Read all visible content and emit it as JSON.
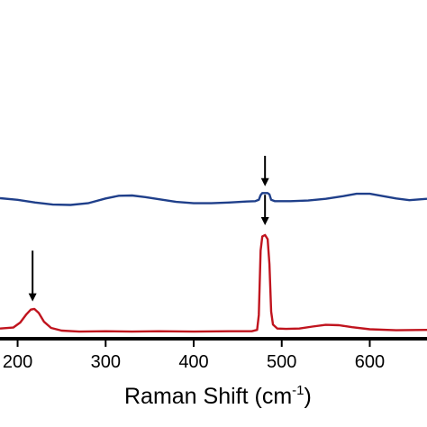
{
  "chart_data": {
    "type": "line",
    "xlabel_main": "Raman Shift (cm",
    "xlabel_sup": "-1",
    "xlabel_close": ")",
    "ylabel": "",
    "xlim": [
      180,
      665
    ],
    "ylim": [
      0,
      100
    ],
    "x_ticks": [
      200,
      300,
      400,
      500,
      600
    ],
    "x_tick_labels": [
      "200",
      "300",
      "400",
      "500",
      "600"
    ],
    "grid": false,
    "series": [
      {
        "color": "#1f3f8a",
        "points": [
          [
            180,
            41.5
          ],
          [
            200,
            41.0
          ],
          [
            220,
            40.2
          ],
          [
            240,
            39.6
          ],
          [
            260,
            39.5
          ],
          [
            280,
            40.0
          ],
          [
            300,
            41.4
          ],
          [
            315,
            42.2
          ],
          [
            330,
            42.3
          ],
          [
            345,
            41.8
          ],
          [
            360,
            41.2
          ],
          [
            380,
            40.4
          ],
          [
            400,
            40.0
          ],
          [
            420,
            40.0
          ],
          [
            440,
            40.2
          ],
          [
            460,
            40.5
          ],
          [
            470,
            40.6
          ],
          [
            474,
            41.0
          ],
          [
            476,
            42.4
          ],
          [
            478,
            43.0
          ],
          [
            484,
            43.0
          ],
          [
            486,
            42.6
          ],
          [
            488,
            41.0
          ],
          [
            492,
            40.6
          ],
          [
            510,
            40.6
          ],
          [
            530,
            40.8
          ],
          [
            550,
            41.3
          ],
          [
            570,
            42.1
          ],
          [
            585,
            42.8
          ],
          [
            600,
            42.8
          ],
          [
            615,
            42.1
          ],
          [
            630,
            41.4
          ],
          [
            645,
            40.9
          ],
          [
            665,
            41.3
          ]
        ]
      },
      {
        "color": "#c0141e",
        "points": [
          [
            180,
            3.0
          ],
          [
            195,
            3.3
          ],
          [
            203,
            4.8
          ],
          [
            210,
            7.2
          ],
          [
            215,
            8.6
          ],
          [
            219,
            8.8
          ],
          [
            224,
            7.6
          ],
          [
            230,
            5.0
          ],
          [
            238,
            3.2
          ],
          [
            250,
            2.4
          ],
          [
            270,
            2.1
          ],
          [
            300,
            2.2
          ],
          [
            330,
            2.1
          ],
          [
            360,
            2.2
          ],
          [
            400,
            2.1
          ],
          [
            440,
            2.2
          ],
          [
            466,
            2.2
          ],
          [
            472,
            2.6
          ],
          [
            474,
            7.0
          ],
          [
            476,
            26.0
          ],
          [
            478,
            30.2
          ],
          [
            481,
            30.6
          ],
          [
            484,
            29.4
          ],
          [
            486,
            22.0
          ],
          [
            488,
            8.0
          ],
          [
            490,
            4.2
          ],
          [
            495,
            3.0
          ],
          [
            505,
            2.9
          ],
          [
            520,
            3.0
          ],
          [
            535,
            3.6
          ],
          [
            550,
            4.1
          ],
          [
            565,
            4.0
          ],
          [
            580,
            3.4
          ],
          [
            600,
            2.8
          ],
          [
            630,
            2.5
          ],
          [
            665,
            2.6
          ]
        ]
      }
    ],
    "annotations": [
      {
        "type": "arrow",
        "x": 481,
        "y_from": 54.0,
        "y_to": 45.0
      },
      {
        "type": "arrow",
        "x": 481,
        "y_from": 42.5,
        "y_to": 33.5
      },
      {
        "type": "arrow",
        "x": 217,
        "y_from": 26.0,
        "y_to": 11.0
      }
    ]
  }
}
